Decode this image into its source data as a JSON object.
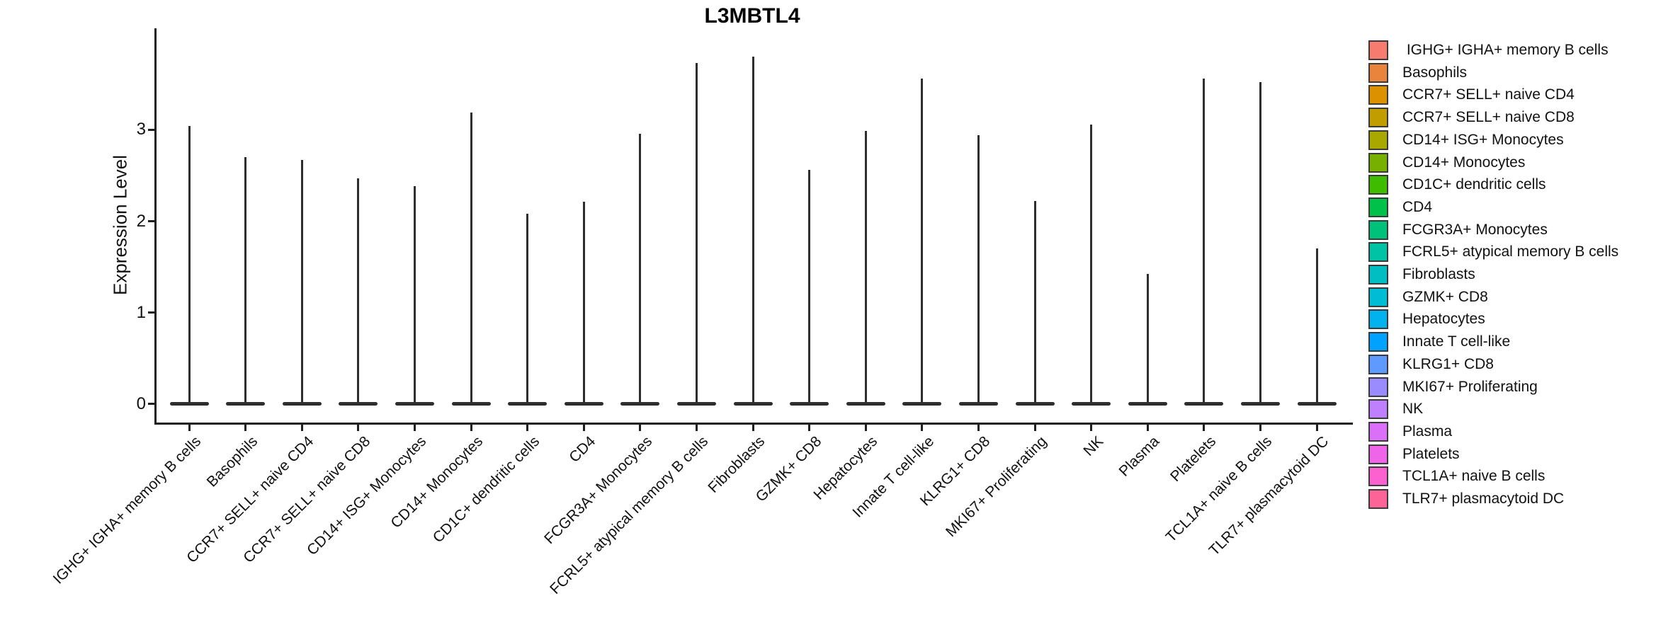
{
  "title": "L3MBTL4",
  "y_axis": {
    "label": "Expression Level",
    "tick_labels": [
      "0",
      "1",
      "2",
      "3"
    ]
  },
  "chart_data": {
    "type": "violin",
    "title": "L3MBTL4",
    "xlabel": "",
    "ylabel": "Expression Level",
    "ylim": [
      0,
      4.1
    ],
    "yticks": [
      0,
      1,
      2,
      3
    ],
    "grid": false,
    "legend_position": "right",
    "violin_style": "collapsed: wide flat body at expression 0 with a thin vertical spike up to the maximum expression value",
    "outline_color": "#2E2E2E",
    "axis_color": "#1F1F1F",
    "categories": [
      "IGHG+ IGHA+ memory B cells",
      "Basophils",
      "CCR7+ SELL+ naive CD4",
      "CCR7+ SELL+ naive CD8",
      "CD14+ ISG+ Monocytes",
      "CD14+ Monocytes",
      "CD1C+ dendritic cells",
      "CD4",
      "FCGR3A+ Monocytes",
      "FCRL5+ atypical memory B cells",
      "Fibroblasts",
      "GZMK+ CD8",
      "Hepatocytes",
      "Innate T cell-like",
      "KLRG1+ CD8",
      "MKI67+ Proliferating",
      "NK",
      "Plasma",
      "Platelets",
      "TCL1A+ naive B cells",
      "TLR7+ plasmacytoid DC"
    ],
    "series": [
      {
        "name": "max_expression_level",
        "values": [
          3.04,
          2.7,
          2.67,
          2.47,
          2.38,
          3.19,
          2.08,
          2.21,
          2.96,
          3.73,
          3.8,
          2.56,
          2.99,
          3.56,
          2.94,
          2.22,
          3.06,
          1.42,
          3.56,
          3.52,
          1.7
        ]
      }
    ],
    "colors": [
      "#F87B70",
      "#E8843B",
      "#DB9100",
      "#C29D00",
      "#A9A800",
      "#78B000",
      "#3FBC00",
      "#00C24B",
      "#00C17A",
      "#00C3A6",
      "#00BEC2",
      "#00BDD6",
      "#00B3EE",
      "#00A2FF",
      "#5E9AFF",
      "#9A8CFF",
      "#BF80FF",
      "#DA70F8",
      "#EE65E7",
      "#FB61CF",
      "#FC6498"
    ]
  },
  "legend": {
    "items": [
      {
        "label": " IGHG+ IGHA+ memory B cells",
        "color": "#F87B70"
      },
      {
        "label": "Basophils",
        "color": "#E8843B"
      },
      {
        "label": "CCR7+ SELL+ naive CD4",
        "color": "#DB9100"
      },
      {
        "label": "CCR7+ SELL+ naive CD8",
        "color": "#C29D00"
      },
      {
        "label": "CD14+ ISG+ Monocytes",
        "color": "#A9A800"
      },
      {
        "label": "CD14+ Monocytes",
        "color": "#78B000"
      },
      {
        "label": "CD1C+ dendritic cells",
        "color": "#3FBC00"
      },
      {
        "label": "CD4",
        "color": "#00C24B"
      },
      {
        "label": "FCGR3A+ Monocytes",
        "color": "#00C17A"
      },
      {
        "label": "FCRL5+ atypical memory B cells",
        "color": "#00C3A6"
      },
      {
        "label": "Fibroblasts",
        "color": "#00BEC2"
      },
      {
        "label": "GZMK+ CD8",
        "color": "#00BDD6"
      },
      {
        "label": "Hepatocytes",
        "color": "#00B3EE"
      },
      {
        "label": "Innate T cell-like",
        "color": "#00A2FF"
      },
      {
        "label": "KLRG1+ CD8",
        "color": "#5E9AFF"
      },
      {
        "label": "MKI67+ Proliferating",
        "color": "#9A8CFF"
      },
      {
        "label": "NK",
        "color": "#BF80FF"
      },
      {
        "label": "Plasma",
        "color": "#DA70F8"
      },
      {
        "label": "Platelets",
        "color": "#EE65E7"
      },
      {
        "label": "TCL1A+ naive B cells",
        "color": "#FB61CF"
      },
      {
        "label": "TLR7+ plasmacytoid DC",
        "color": "#FC6498"
      }
    ]
  }
}
